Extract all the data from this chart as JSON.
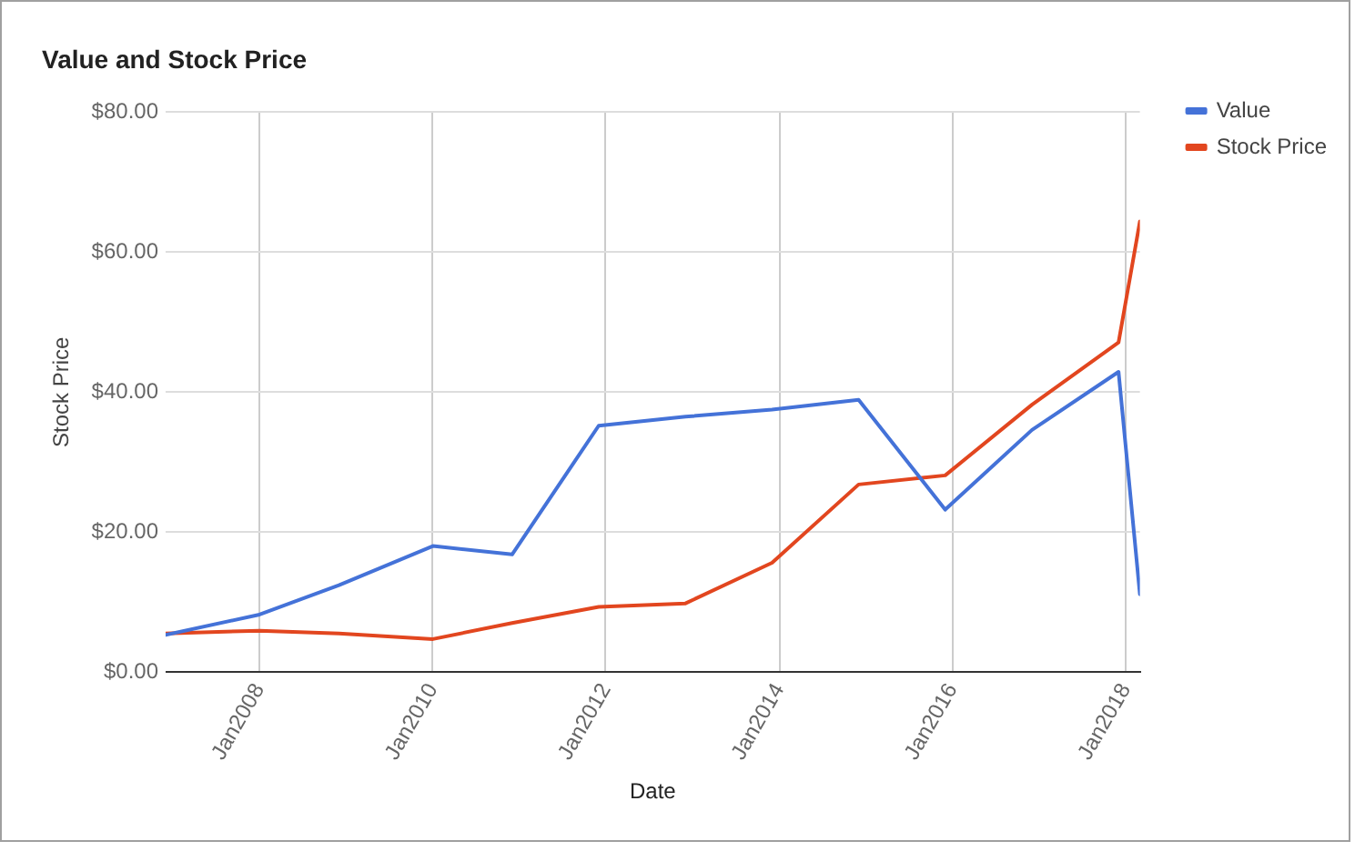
{
  "chart_data": {
    "type": "line",
    "title": "Value and Stock Price",
    "xlabel": "Date",
    "ylabel": "Stock Price",
    "x": [
      "2006-12",
      "2008-01",
      "2008-12",
      "2010-01",
      "2010-12",
      "2011-12",
      "2012-12",
      "2013-12",
      "2014-12",
      "2015-12",
      "2016-12",
      "2017-12",
      "2018-03"
    ],
    "series": [
      {
        "name": "Value",
        "color": "#4472d8",
        "values": [
          5.3,
          8.2,
          12.4,
          18.0,
          16.8,
          35.2,
          36.5,
          37.5,
          38.9,
          23.2,
          34.6,
          42.9,
          11.1
        ]
      },
      {
        "name": "Stock Price",
        "color": "#e2461f",
        "values": [
          5.5,
          5.9,
          5.5,
          4.7,
          7.0,
          9.3,
          9.8,
          15.6,
          26.8,
          28.1,
          38.2,
          47.1,
          64.4
        ]
      }
    ],
    "xlim": [
      "2006-12",
      "2018-03"
    ],
    "xticks": [
      {
        "value": "2008-01",
        "label": "Jan2008"
      },
      {
        "value": "2010-01",
        "label": "Jan2010"
      },
      {
        "value": "2012-01",
        "label": "Jan2012"
      },
      {
        "value": "2014-01",
        "label": "Jan2014"
      },
      {
        "value": "2016-01",
        "label": "Jan2016"
      },
      {
        "value": "2018-01",
        "label": "Jan2018"
      }
    ],
    "ylim": [
      0,
      80
    ],
    "yticks": [
      {
        "value": 0,
        "label": "$0.00"
      },
      {
        "value": 20,
        "label": "$20.00"
      },
      {
        "value": 40,
        "label": "$40.00"
      },
      {
        "value": 60,
        "label": "$60.00"
      },
      {
        "value": 80,
        "label": "$80.00"
      }
    ],
    "grid": true,
    "legend": "top right",
    "marker": "none"
  }
}
